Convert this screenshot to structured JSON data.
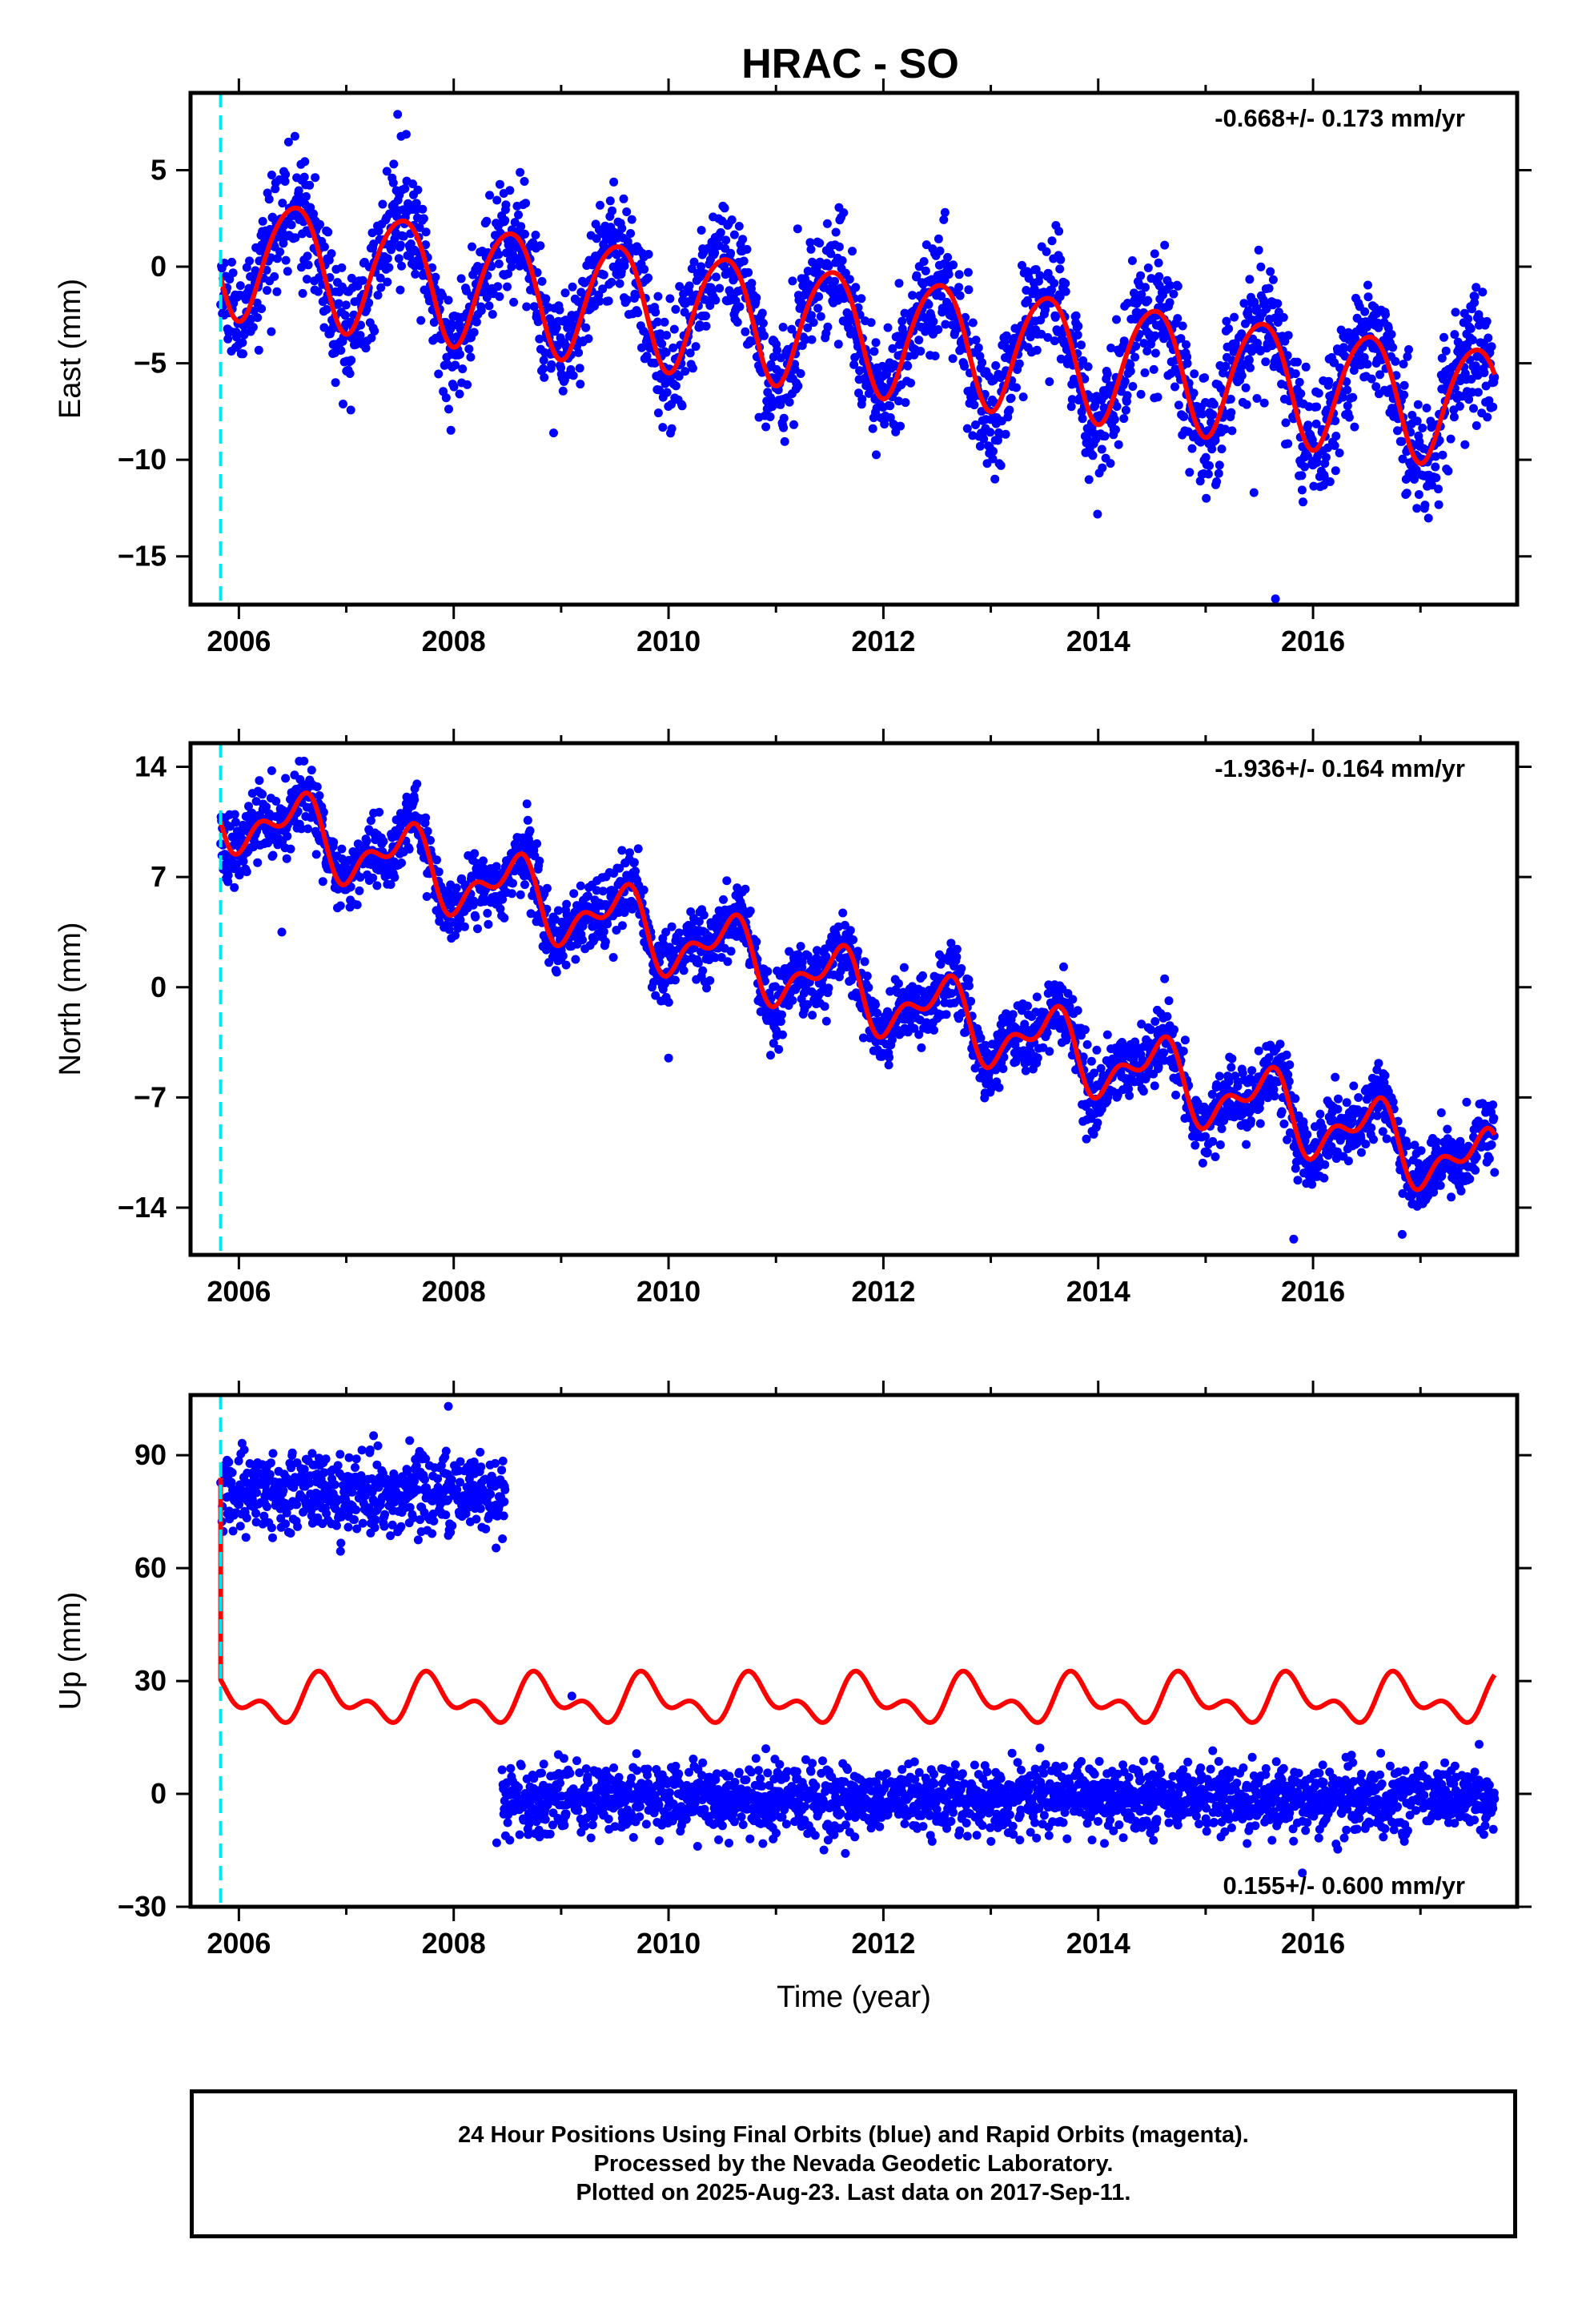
{
  "title": "HRAC - SO",
  "footer": {
    "lines": [
      "24 Hour Positions Using Final Orbits (blue) and Rapid Orbits (magenta).",
      "Processed by the Nevada Geodetic Laboratory.",
      "Plotted on 2025-Aug-23. Last data on 2017-Sep-11."
    ]
  },
  "colors": {
    "points": "#0000ff",
    "model": "#ff0000",
    "start_marker": "#00e5ee",
    "frame": "#000000"
  },
  "chart_data": [
    {
      "type": "scatter",
      "name": "east",
      "ylabel": "East (mm)",
      "xlabel": "",
      "xlim": [
        2005.55,
        2017.9
      ],
      "ylim": [
        -17.5,
        9
      ],
      "xticks": [
        2006,
        2008,
        2010,
        2012,
        2014,
        2016
      ],
      "yticks": [
        -15,
        -10,
        -5,
        0,
        5
      ],
      "rate_label": "-0.668+/- 0.173 mm/yr",
      "rate_position": "top-right",
      "start_marker_x": 2005.83,
      "data_range": [
        2005.83,
        2017.69
      ],
      "trend": {
        "t0": 2005.83,
        "offset": 0.7,
        "rate": -0.668
      },
      "annual": {
        "amp": 3.1,
        "phase": 0.26,
        "semi_amp": 0.35,
        "semi_phase": 0.1
      },
      "noise_sd": 1.5,
      "outliers": [
        [
          2015.65,
          -17.2
        ],
        [
          2015.45,
          -11.7
        ],
        [
          2014.95,
          -11.1
        ],
        [
          2006.9,
          -6.0
        ]
      ],
      "seed": 11
    },
    {
      "type": "scatter",
      "name": "north",
      "ylabel": "North (mm)",
      "xlabel": "",
      "xlim": [
        2005.55,
        2017.9
      ],
      "ylim": [
        -17,
        15.5
      ],
      "xticks": [
        2006,
        2008,
        2010,
        2012,
        2014,
        2016
      ],
      "yticks": [
        -14,
        -7,
        0,
        7,
        14
      ],
      "rate_label": "-1.936+/- 0.164 mm/yr",
      "rate_position": "top-right",
      "start_marker_x": 2005.83,
      "data_range": [
        2005.83,
        2017.69
      ],
      "trend": {
        "t0": 2005.83,
        "offset": 11.3,
        "rate": -1.936
      },
      "annual": {
        "amp": 1.9,
        "phase": 0.3,
        "semi_amp": 1.1,
        "semi_phase": 0.05
      },
      "noise_sd": 1.1,
      "outliers": [
        [
          2015.82,
          -16.0
        ],
        [
          2016.83,
          -15.7
        ],
        [
          2010.0,
          -4.5
        ],
        [
          2006.4,
          3.5
        ]
      ],
      "seed": 23
    },
    {
      "type": "scatter",
      "name": "up",
      "ylabel": "Up (mm)",
      "xlabel": "Time (year)",
      "xlim": [
        2005.55,
        2017.9
      ],
      "ylim": [
        -30,
        106
      ],
      "xticks": [
        2006,
        2008,
        2010,
        2012,
        2014,
        2016
      ],
      "yticks": [
        -30,
        0,
        30,
        60,
        90
      ],
      "rate_label": "0.155+/- 0.600 mm/yr",
      "rate_position": "bottom-right",
      "start_marker_x": 2005.83,
      "segments": [
        {
          "from": 2005.83,
          "to": 2008.48,
          "level": 80,
          "noise_sd": 5
        },
        {
          "from": 2008.45,
          "to": 2017.69,
          "level": -1.5,
          "noise_sd": 4.5
        }
      ],
      "model": {
        "level": 25,
        "amp": 4.5,
        "phase": 0.55,
        "semi_amp": 3.5,
        "semi_phase": 0.1,
        "start_level": 84
      },
      "outliers": [
        [
          2007.95,
          103
        ],
        [
          2009.1,
          26
        ],
        [
          2015.9,
          -21
        ],
        [
          2008.4,
          -13
        ]
      ],
      "seed": 37
    }
  ]
}
